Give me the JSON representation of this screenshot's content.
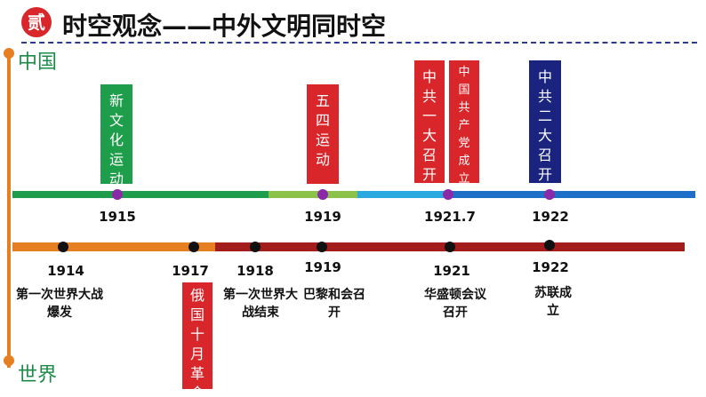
{
  "header": {
    "badge": "贰",
    "title": "时空观念——中外文明同时空"
  },
  "axis_labels": {
    "top": "中国",
    "bottom": "世界"
  },
  "china_timeline": {
    "years": [
      "1915",
      "1919",
      "1921.7",
      "1922"
    ],
    "events": [
      {
        "label": "新文化运动",
        "color": "#1e9e4a"
      },
      {
        "label": "五四运动",
        "color": "#d8262a"
      },
      {
        "label": "中共一大召开",
        "color": "#d8262a"
      },
      {
        "label": "中国共产党成立",
        "color": "#d8262a"
      },
      {
        "label": "中共二大召开",
        "color": "#1a237e"
      }
    ]
  },
  "world_timeline": {
    "years": [
      "1914",
      "1917",
      "1918",
      "1919",
      "1921",
      "1922"
    ],
    "events": [
      {
        "label": "第一次世界大战爆发"
      },
      {
        "label": "俄国十月革命",
        "color": "#d8262a"
      },
      {
        "label": "第一次世界大战结束"
      },
      {
        "label": "巴黎和会召开"
      },
      {
        "label": "华盛顿会议召开"
      },
      {
        "label": "苏联成立"
      }
    ]
  },
  "colors": {
    "accent_red": "#d8262a",
    "green": "#1e9e4a",
    "light_green": "#8bc34a",
    "light_blue": "#29a9e0",
    "blue": "#1e6fc8",
    "orange": "#e67e22",
    "dark_red": "#a31d1d",
    "navy": "#1a237e",
    "dot_purple": "#8a2aa8"
  }
}
